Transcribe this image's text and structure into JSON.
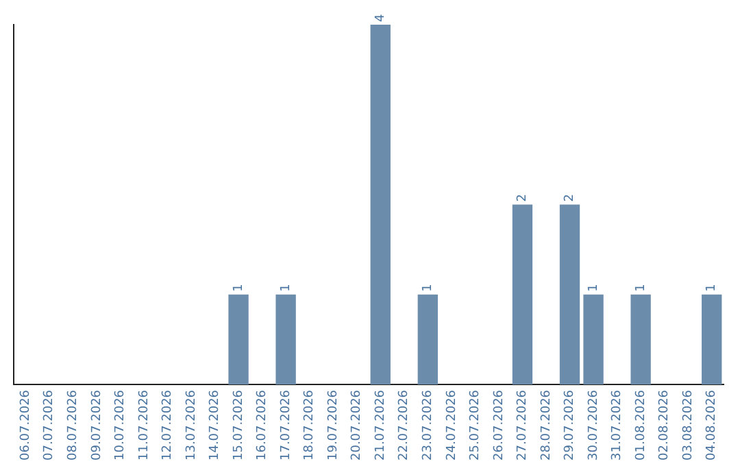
{
  "chart_data": {
    "type": "bar",
    "categories": [
      "06.07.2026",
      "07.07.2026",
      "08.07.2026",
      "09.07.2026",
      "10.07.2026",
      "11.07.2026",
      "12.07.2026",
      "13.07.2026",
      "14.07.2026",
      "15.07.2026",
      "16.07.2026",
      "17.07.2026",
      "18.07.2026",
      "19.07.2026",
      "20.07.2026",
      "21.07.2026",
      "22.07.2026",
      "23.07.2026",
      "24.07.2026",
      "25.07.2026",
      "26.07.2026",
      "27.07.2026",
      "28.07.2026",
      "29.07.2026",
      "30.07.2026",
      "31.07.2026",
      "01.08.2026",
      "02.08.2026",
      "03.08.2026",
      "04.08.2026"
    ],
    "values": [
      0,
      0,
      0,
      0,
      0,
      0,
      0,
      0,
      0,
      1,
      0,
      1,
      0,
      0,
      0,
      4,
      0,
      1,
      0,
      0,
      0,
      2,
      0,
      2,
      1,
      0,
      1,
      0,
      0,
      1
    ],
    "value_labels": [
      null,
      null,
      null,
      null,
      null,
      null,
      null,
      null,
      null,
      "1",
      null,
      "1",
      null,
      null,
      null,
      "4",
      null,
      "1",
      null,
      null,
      null,
      "2",
      null,
      "2",
      "1",
      null,
      "1",
      null,
      null,
      "1"
    ],
    "color": "#6b8cab",
    "grid": false,
    "legend": false
  }
}
